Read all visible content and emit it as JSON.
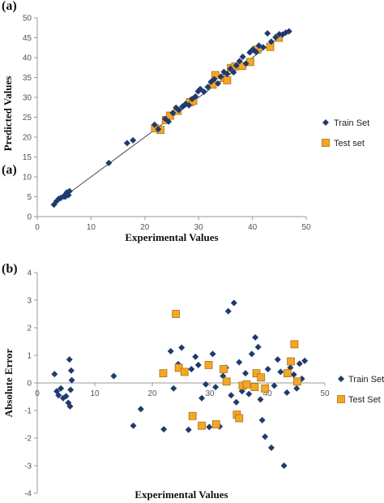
{
  "panels": {
    "a_label": "(a)",
    "a_label_dup": "(a)",
    "b_label": "(b)"
  },
  "legend_top": {
    "train": "Train Set",
    "test": "Test set"
  },
  "legend_bottom": {
    "train": "Train Set",
    "test": "Test Set"
  },
  "colors": {
    "train": "#1f3a6e",
    "test": "#f5a623",
    "test_border": "#a8731a",
    "fit_line": "#333333"
  },
  "chart_data": [
    {
      "type": "scatter",
      "xlabel": "Experimental Values",
      "ylabel": "Predicted Values",
      "xlim": [
        0,
        50
      ],
      "ylim": [
        0,
        50
      ],
      "xticks": [
        "0",
        "10",
        "20",
        "30",
        "40",
        "50"
      ],
      "yticks": [
        "0",
        "5",
        "10",
        "15",
        "20",
        "25",
        "30",
        "35",
        "40",
        "45",
        "50"
      ],
      "grid": false,
      "legend_position": "right",
      "fit_line": [
        [
          3,
          3
        ],
        [
          47,
          47
        ]
      ],
      "series": [
        {
          "name": "Train Set",
          "marker": "diamond",
          "points": [
            [
              3.1,
              3.0
            ],
            [
              3.6,
              3.9
            ],
            [
              4.0,
              4.5
            ],
            [
              4.4,
              4.7
            ],
            [
              4.9,
              5.1
            ],
            [
              5.3,
              5.6
            ],
            [
              5.5,
              6.1
            ],
            [
              5.8,
              5.4
            ],
            [
              6.0,
              6.4
            ],
            [
              5.2,
              5.0
            ],
            [
              13.3,
              13.5
            ],
            [
              16.7,
              18.5
            ],
            [
              17.8,
              19.2
            ],
            [
              21.8,
              23.1
            ],
            [
              22.5,
              22.0
            ],
            [
              23.8,
              24.6
            ],
            [
              24.4,
              23.9
            ],
            [
              25.2,
              26.1
            ],
            [
              25.8,
              27.4
            ],
            [
              26.3,
              26.8
            ],
            [
              27.0,
              27.7
            ],
            [
              27.6,
              28.4
            ],
            [
              28.2,
              28.0
            ],
            [
              28.8,
              29.6
            ],
            [
              29.4,
              30.2
            ],
            [
              29.9,
              31.5
            ],
            [
              30.3,
              32.1
            ],
            [
              31.0,
              31.4
            ],
            [
              31.7,
              32.6
            ],
            [
              32.3,
              33.9
            ],
            [
              32.9,
              34.6
            ],
            [
              33.6,
              33.5
            ],
            [
              34.1,
              35.2
            ],
            [
              34.7,
              36.4
            ],
            [
              35.3,
              35.9
            ],
            [
              35.9,
              37.2
            ],
            [
              36.5,
              36.3
            ],
            [
              37.0,
              38.0
            ],
            [
              37.6,
              39.1
            ],
            [
              38.2,
              40.2
            ],
            [
              38.8,
              38.5
            ],
            [
              39.5,
              41.3
            ],
            [
              40.1,
              42.1
            ],
            [
              40.7,
              41.4
            ],
            [
              41.2,
              43.0
            ],
            [
              42.0,
              42.6
            ],
            [
              42.8,
              46.1
            ],
            [
              43.5,
              44.0
            ],
            [
              44.3,
              45.1
            ],
            [
              45.0,
              45.9
            ],
            [
              45.6,
              45.8
            ],
            [
              46.2,
              46.3
            ],
            [
              46.8,
              46.6
            ]
          ]
        },
        {
          "name": "Test set",
          "marker": "square",
          "points": [
            [
              21.9,
              22.2
            ],
            [
              22.9,
              21.8
            ],
            [
              23.9,
              24.3
            ],
            [
              24.7,
              25.4
            ],
            [
              26.1,
              26.6
            ],
            [
              28.4,
              28.8
            ],
            [
              29.0,
              29.1
            ],
            [
              32.6,
              33.2
            ],
            [
              33.1,
              35.6
            ],
            [
              34.8,
              34.9
            ],
            [
              35.3,
              34.3
            ],
            [
              36.0,
              37.4
            ],
            [
              36.8,
              37.8
            ],
            [
              38.1,
              37.9
            ],
            [
              39.6,
              38.9
            ],
            [
              40.9,
              42.0
            ],
            [
              43.3,
              42.7
            ],
            [
              44.9,
              45.0
            ]
          ]
        }
      ]
    },
    {
      "type": "scatter",
      "xlabel": "Experimental Values",
      "ylabel": "Absolute Error",
      "xlim": [
        0,
        50
      ],
      "ylim": [
        -4,
        4
      ],
      "xticks": [
        "0",
        "10",
        "20",
        "30",
        "40",
        "50"
      ],
      "yticks": [
        "4",
        "3",
        "2",
        "1",
        "0",
        "-1",
        "-2",
        "-3",
        "-4"
      ],
      "grid": false,
      "legend_position": "right",
      "series": [
        {
          "name": "Train Set",
          "marker": "diamond",
          "points": [
            [
              3.0,
              0.32
            ],
            [
              3.4,
              -0.3
            ],
            [
              3.7,
              -0.45
            ],
            [
              4.1,
              -0.2
            ],
            [
              4.5,
              -0.55
            ],
            [
              5.0,
              -0.48
            ],
            [
              5.4,
              -0.72
            ],
            [
              5.6,
              0.85
            ],
            [
              5.9,
              0.45
            ],
            [
              6.0,
              0.1
            ],
            [
              5.7,
              -0.85
            ],
            [
              5.8,
              -0.25
            ],
            [
              13.3,
              0.25
            ],
            [
              16.7,
              -1.55
            ],
            [
              18.0,
              -0.95
            ],
            [
              22.0,
              -1.68
            ],
            [
              23.2,
              1.15
            ],
            [
              23.7,
              -0.2
            ],
            [
              24.5,
              0.68
            ],
            [
              25.1,
              1.28
            ],
            [
              25.6,
              0.4
            ],
            [
              26.3,
              -1.7
            ],
            [
              26.8,
              0.5
            ],
            [
              27.5,
              0.95
            ],
            [
              28.0,
              0.65
            ],
            [
              28.6,
              -0.55
            ],
            [
              29.3,
              -0.05
            ],
            [
              29.9,
              -1.6
            ],
            [
              30.5,
              1.05
            ],
            [
              31.0,
              -0.15
            ],
            [
              31.7,
              -1.58
            ],
            [
              32.3,
              0.25
            ],
            [
              32.8,
              0.55
            ],
            [
              33.2,
              2.6
            ],
            [
              33.7,
              -0.45
            ],
            [
              34.2,
              2.9
            ],
            [
              34.6,
              -0.7
            ],
            [
              35.1,
              0.75
            ],
            [
              35.6,
              -0.3
            ],
            [
              36.2,
              0.35
            ],
            [
              36.8,
              -0.4
            ],
            [
              37.3,
              1.05
            ],
            [
              37.9,
              1.65
            ],
            [
              38.4,
              1.3
            ],
            [
              38.8,
              -0.6
            ],
            [
              39.1,
              -1.35
            ],
            [
              39.6,
              -1.95
            ],
            [
              40.1,
              0.5
            ],
            [
              40.7,
              -2.35
            ],
            [
              41.2,
              -0.1
            ],
            [
              41.8,
              0.85
            ],
            [
              42.3,
              0.4
            ],
            [
              42.9,
              -3.0
            ],
            [
              43.4,
              -0.35
            ],
            [
              44.0,
              0.55
            ],
            [
              44.6,
              0.3
            ],
            [
              45.1,
              -0.2
            ],
            [
              45.6,
              0.7
            ],
            [
              46.0,
              0.15
            ],
            [
              46.5,
              0.8
            ]
          ]
        },
        {
          "name": "Test Set",
          "marker": "square",
          "points": [
            [
              21.9,
              0.35
            ],
            [
              24.1,
              2.5
            ],
            [
              24.6,
              0.55
            ],
            [
              25.6,
              0.4
            ],
            [
              27.0,
              -1.2
            ],
            [
              28.6,
              -1.55
            ],
            [
              29.8,
              0.65
            ],
            [
              31.1,
              -1.5
            ],
            [
              32.4,
              0.5
            ],
            [
              32.9,
              0.05
            ],
            [
              34.7,
              -1.15
            ],
            [
              35.1,
              -1.28
            ],
            [
              35.7,
              -0.1
            ],
            [
              36.4,
              -0.05
            ],
            [
              37.8,
              -0.15
            ],
            [
              38.1,
              0.35
            ],
            [
              38.9,
              0.2
            ],
            [
              39.6,
              -0.2
            ],
            [
              43.5,
              0.35
            ],
            [
              44.1,
              0.78
            ],
            [
              44.7,
              1.4
            ],
            [
              45.2,
              0.05
            ]
          ]
        }
      ]
    }
  ]
}
